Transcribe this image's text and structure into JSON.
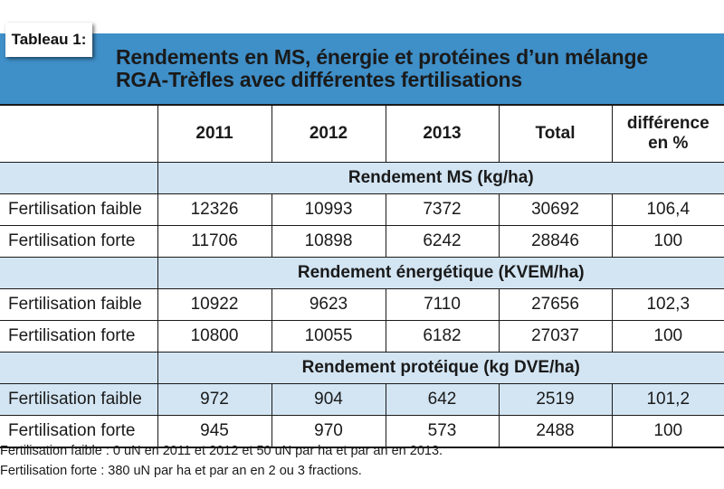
{
  "tag": "Tableau 1:",
  "title": {
    "line1": "Rendements en MS, énergie et protéines d’un mélange",
    "line2": "RGA-Trèfles avec différentes fertilisations"
  },
  "columns": [
    "2011",
    "2012",
    "2013",
    "Total",
    "différence",
    "en %"
  ],
  "sections": [
    {
      "title": "Rendement MS (kg/ha)",
      "rows": [
        {
          "label": "Fertilisation faible",
          "values": [
            "12326",
            "10993",
            "7372",
            "30692",
            "106,4"
          ]
        },
        {
          "label": "Fertilisation forte",
          "values": [
            "11706",
            "10898",
            "6242",
            "28846",
            "100"
          ]
        }
      ]
    },
    {
      "title": "Rendement énergétique (KVEM/ha)",
      "rows": [
        {
          "label": "Fertilisation faible",
          "values": [
            "10922",
            "9623",
            "7110",
            "27656",
            "102,3"
          ]
        },
        {
          "label": "Fertilisation forte",
          "values": [
            "10800",
            "10055",
            "6182",
            "27037",
            "100"
          ]
        }
      ]
    },
    {
      "title": "Rendement protéique (kg DVE/ha)",
      "rows": [
        {
          "label": "Fertilisation faible",
          "values": [
            "972",
            "904",
            "642",
            "2519",
            "101,2"
          ]
        },
        {
          "label": "Fertilisation forte",
          "values": [
            "945",
            "970",
            "573",
            "2488",
            "100"
          ]
        }
      ]
    }
  ],
  "notes": [
    "Fertilisation faible : 0 uN en 2011 et 2012 et 50 uN par ha et par an en 2013.",
    "Fertilisation forte : 380 uN par ha et par an en 2 ou 3 fractions."
  ],
  "colors": {
    "header": "#3f8fc8",
    "section": "#d3e5f3"
  }
}
